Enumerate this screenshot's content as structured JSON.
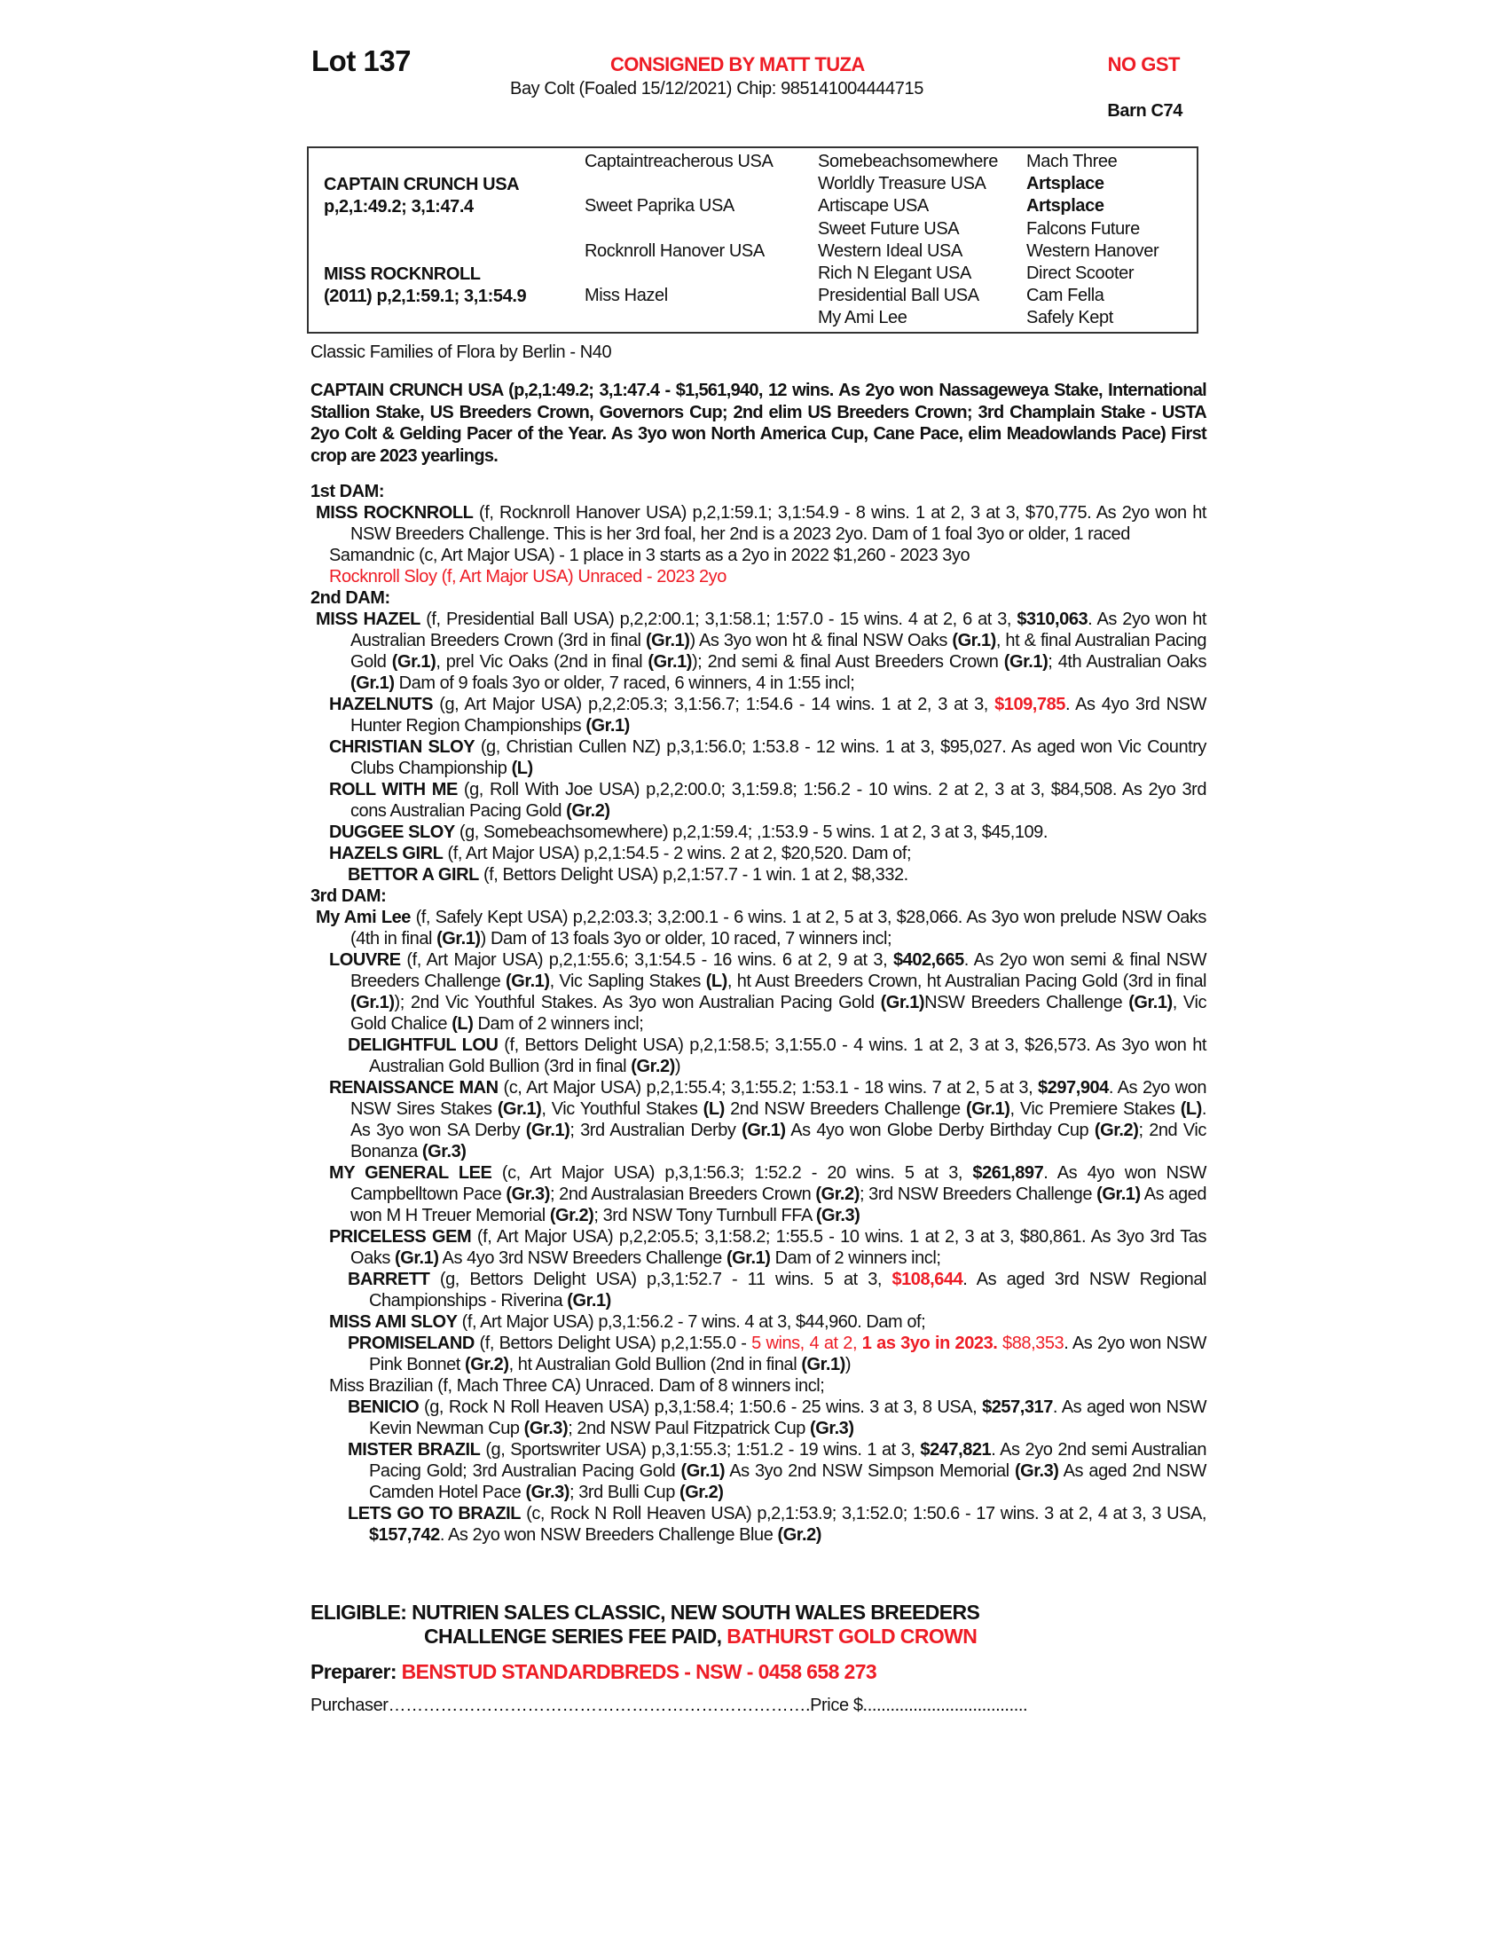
{
  "header": {
    "lot": "Lot 137",
    "consignor": "CONSIGNED BY MATT TUZA",
    "gst": "NO GST",
    "description": "Bay Colt (Foaled 15/12/2021) Chip: 985141004444715",
    "barn": "Barn C74"
  },
  "pedigree": {
    "sire_name": "CAPTAIN CRUNCH USA",
    "sire_record": "p,2,1:49.2; 3,1:47.4",
    "dam_name": "MISS ROCKNROLL",
    "dam_record": "(2011) p,2,1:59.1; 3,1:54.9",
    "col2": [
      "Captaintreacherous USA",
      "Sweet Paprika USA",
      "Rocknroll Hanover USA",
      "Miss Hazel"
    ],
    "col3": [
      "Somebeachsomewhere",
      "Worldly Treasure USA",
      "Artiscape USA",
      "Sweet Future USA",
      "Western Ideal USA",
      "Rich N Elegant USA",
      "Presidential Ball USA",
      "My Ami Lee"
    ],
    "col4": [
      "Mach Three",
      "Artsplace",
      "Artsplace",
      "Falcons Future",
      "Western Hanover",
      "Direct Scooter",
      "Cam Fella",
      "Safely Kept"
    ]
  },
  "family": "Classic Families of Flora by Berlin - N40",
  "sire_summary": "CAPTAIN CRUNCH USA (p,2,1:49.2; 3,1:47.4 - $1,561,940, 12 wins. As 2yo won Nassageweya Stake, International Stallion Stake, US Breeders Crown, Governors Cup; 2nd elim US Breeders Crown; 3rd Champlain Stake - USTA 2yo Colt & Gelding Pacer of the Year. As 3yo won North America Cup, Cane Pace, elim Meadowlands Pace) First crop are 2023 yearlings.",
  "entries": [
    {
      "level": "h",
      "runs": [
        [
          "1st DAM:",
          ""
        ]
      ]
    },
    {
      "level": "l1",
      "runs": [
        [
          "MISS ROCKNROLL",
          "b"
        ],
        [
          " (f, Rocknroll Hanover USA) p,2,1:59.1; 3,1:54.9 - 8 wins. 1 at 2, 3 at 3, $70,775. As 2yo won ht NSW Breeders Challenge. This is her 3rd foal, her 2nd is a 2023 2yo. Dam of 1 foal 3yo or older, 1 raced",
          ""
        ]
      ]
    },
    {
      "level": "l2",
      "runs": [
        [
          "Samandnic (c, Art Major USA) - 1 place in 3 starts as a 2yo in 2022 $1,260 - 2023 3yo",
          ""
        ]
      ]
    },
    {
      "level": "l2",
      "runs": [
        [
          "Rocknroll Sloy (f, Art Major USA) Unraced - 2023 2yo",
          "r"
        ]
      ]
    },
    {
      "level": "h",
      "runs": [
        [
          "2nd DAM:",
          ""
        ]
      ]
    },
    {
      "level": "l1",
      "runs": [
        [
          "MISS HAZEL",
          "b"
        ],
        [
          " (f, Presidential Ball USA) p,2,2:00.1; 3,1:58.1; 1:57.0 - 15 wins. 4 at 2, 6 at 3, ",
          ""
        ],
        [
          "$310,063",
          "b"
        ],
        [
          ". As 2yo won ht Australian Breeders Crown (3rd in final ",
          ""
        ],
        [
          "(Gr.1)",
          "b"
        ],
        [
          ") As 3yo won ht & final NSW Oaks ",
          ""
        ],
        [
          "(Gr.1)",
          "b"
        ],
        [
          ", ht & final Australian Pacing Gold ",
          ""
        ],
        [
          "(Gr.1)",
          "b"
        ],
        [
          ", prel Vic Oaks (2nd in final ",
          ""
        ],
        [
          "(Gr.1)",
          "b"
        ],
        [
          "); 2nd semi & final Aust Breeders Crown ",
          ""
        ],
        [
          "(Gr.1)",
          "b"
        ],
        [
          "; 4th Australian Oaks ",
          ""
        ],
        [
          "(Gr.1)",
          "b"
        ],
        [
          " Dam of 9 foals 3yo or older, 7 raced, 6 winners, 4 in 1:55 incl;",
          ""
        ]
      ]
    },
    {
      "level": "l2",
      "runs": [
        [
          "HAZELNUTS",
          "b"
        ],
        [
          " (g, Art Major USA) p,2,2:05.3; 3,1:56.7; 1:54.6 - 14 wins. 1 at 2, 3 at 3, ",
          ""
        ],
        [
          "$109,785",
          "br"
        ],
        [
          ". As 4yo 3rd NSW Hunter Region Championships ",
          ""
        ],
        [
          "(Gr.1)",
          "b"
        ]
      ]
    },
    {
      "level": "l2",
      "runs": [
        [
          "CHRISTIAN SLOY",
          "b"
        ],
        [
          " (g, Christian Cullen NZ) p,3,1:56.0; 1:53.8 - 12 wins. 1 at 3, $95,027. As aged won Vic Country Clubs Championship ",
          ""
        ],
        [
          "(L)",
          "b"
        ]
      ]
    },
    {
      "level": "l2",
      "runs": [
        [
          "ROLL WITH ME",
          "b"
        ],
        [
          " (g, Roll With Joe USA) p,2,2:00.0; 3,1:59.8; 1:56.2 - 10 wins. 2 at 2, 3 at 3, $84,508. As 2yo 3rd cons Australian Pacing Gold ",
          ""
        ],
        [
          "(Gr.2)",
          "b"
        ]
      ]
    },
    {
      "level": "l2",
      "runs": [
        [
          "DUGGEE SLOY",
          "b"
        ],
        [
          " (g, Somebeachsomewhere) p,2,1:59.4; ,1:53.9 - 5 wins. 1 at 2, 3 at 3, $45,109.",
          ""
        ]
      ]
    },
    {
      "level": "l2",
      "runs": [
        [
          "HAZELS GIRL",
          "b"
        ],
        [
          " (f, Art Major USA) p,2,1:54.5 - 2 wins. 2 at 2, $20,520. Dam of;",
          ""
        ]
      ]
    },
    {
      "level": "l3",
      "runs": [
        [
          "BETTOR A GIRL",
          "b"
        ],
        [
          " (f, Bettors Delight USA) p,2,1:57.7 - 1 win. 1 at 2, $8,332.",
          ""
        ]
      ]
    },
    {
      "level": "h",
      "runs": [
        [
          "3rd DAM:",
          ""
        ]
      ]
    },
    {
      "level": "l1",
      "runs": [
        [
          "My Ami Lee",
          "b"
        ],
        [
          " (f, Safely Kept USA) p,2,2:03.3; 3,2:00.1 - 6 wins. 1 at 2, 5 at 3, $28,066. As 3yo won prelude NSW Oaks (4th in final ",
          ""
        ],
        [
          "(Gr.1)",
          "b"
        ],
        [
          ") Dam of 13 foals 3yo or older, 10 raced, 7 winners incl;",
          ""
        ]
      ]
    },
    {
      "level": "l2",
      "runs": [
        [
          "LOUVRE",
          "b"
        ],
        [
          " (f, Art Major USA) p,2,1:55.6; 3,1:54.5 - 16 wins. 6 at 2, 9 at 3, ",
          ""
        ],
        [
          "$402,665",
          "b"
        ],
        [
          ". As 2yo won semi & final NSW Breeders Challenge ",
          ""
        ],
        [
          "(Gr.1)",
          "b"
        ],
        [
          ", Vic Sapling Stakes ",
          ""
        ],
        [
          "(L)",
          "b"
        ],
        [
          ", ht Aust Breeders Crown, ht Australian Pacing Gold (3rd in final ",
          ""
        ],
        [
          "(Gr.1)",
          "b"
        ],
        [
          "); 2nd Vic Youthful Stakes. As 3yo won Australian Pacing Gold ",
          ""
        ],
        [
          "(Gr.1)",
          "b"
        ],
        [
          "NSW Breeders Challenge ",
          ""
        ],
        [
          "(Gr.1)",
          "b"
        ],
        [
          ", Vic Gold Chalice ",
          ""
        ],
        [
          "(L)",
          "b"
        ],
        [
          " Dam of 2 winners incl;",
          ""
        ]
      ]
    },
    {
      "level": "l3",
      "runs": [
        [
          "DELIGHTFUL LOU",
          "b"
        ],
        [
          " (f, Bettors Delight USA) p,2,1:58.5; 3,1:55.0 - 4 wins. 1 at 2, 3 at 3, $26,573. As 3yo won ht Australian Gold Bullion (3rd in final ",
          ""
        ],
        [
          "(Gr.2)",
          "b"
        ],
        [
          ")",
          ""
        ]
      ]
    },
    {
      "level": "l2",
      "runs": [
        [
          "RENAISSANCE MAN",
          "b"
        ],
        [
          " (c, Art Major USA) p,2,1:55.4; 3,1:55.2; 1:53.1 - 18 wins. 7 at 2, 5 at 3, ",
          ""
        ],
        [
          "$297,904",
          "b"
        ],
        [
          ". As 2yo won NSW Sires Stakes ",
          ""
        ],
        [
          "(Gr.1)",
          "b"
        ],
        [
          ", Vic Youthful Stakes ",
          ""
        ],
        [
          "(L)",
          "b"
        ],
        [
          " 2nd NSW Breeders Challenge ",
          ""
        ],
        [
          "(Gr.1)",
          "b"
        ],
        [
          ", Vic Premiere Stakes ",
          ""
        ],
        [
          "(L)",
          "b"
        ],
        [
          ". As 3yo won SA Derby ",
          ""
        ],
        [
          "(Gr.1)",
          "b"
        ],
        [
          "; 3rd Australian Derby ",
          ""
        ],
        [
          "(Gr.1)",
          "b"
        ],
        [
          " As 4yo won Globe Derby Birthday Cup ",
          ""
        ],
        [
          "(Gr.2)",
          "b"
        ],
        [
          "; 2nd Vic Bonanza ",
          ""
        ],
        [
          "(Gr.3)",
          "b"
        ]
      ]
    },
    {
      "level": "l2",
      "runs": [
        [
          "MY GENERAL LEE",
          "b"
        ],
        [
          " (c, Art Major USA) p,3,1:56.3; 1:52.2 - 20 wins. 5 at 3, ",
          ""
        ],
        [
          "$261,897",
          "b"
        ],
        [
          ". As 4yo won NSW Campbelltown Pace ",
          ""
        ],
        [
          "(Gr.3)",
          "b"
        ],
        [
          "; 2nd Australasian Breeders Crown ",
          ""
        ],
        [
          "(Gr.2)",
          "b"
        ],
        [
          "; 3rd NSW Breeders Challenge ",
          ""
        ],
        [
          "(Gr.1)",
          "b"
        ],
        [
          " As aged won M H Treuer Memorial ",
          ""
        ],
        [
          "(Gr.2)",
          "b"
        ],
        [
          "; 3rd NSW Tony Turnbull FFA ",
          ""
        ],
        [
          "(Gr.3)",
          "b"
        ]
      ]
    },
    {
      "level": "l2",
      "runs": [
        [
          "PRICELESS GEM",
          "b"
        ],
        [
          " (f, Art Major USA) p,2,2:05.5; 3,1:58.2; 1:55.5 - 10 wins. 1 at 2, 3 at 3, $80,861. As 3yo 3rd Tas Oaks ",
          ""
        ],
        [
          "(Gr.1)",
          "b"
        ],
        [
          " As 4yo 3rd NSW Breeders Challenge ",
          ""
        ],
        [
          "(Gr.1)",
          "b"
        ],
        [
          " Dam of 2 winners incl;",
          ""
        ]
      ]
    },
    {
      "level": "l3",
      "runs": [
        [
          "BARRETT",
          "b"
        ],
        [
          " (g, Bettors Delight USA) p,3,1:52.7 - 11 wins. 5 at 3, ",
          ""
        ],
        [
          "$108,644",
          "br"
        ],
        [
          ". As aged 3rd NSW Regional Championships - Riverina ",
          ""
        ],
        [
          "(Gr.1)",
          "b"
        ]
      ]
    },
    {
      "level": "l2",
      "runs": [
        [
          "MISS AMI SLOY",
          "b"
        ],
        [
          " (f, Art Major USA) p,3,1:56.2 - 7 wins. 4 at 3, $44,960. Dam of;",
          ""
        ]
      ]
    },
    {
      "level": "l3",
      "runs": [
        [
          "PROMISELAND",
          "b"
        ],
        [
          " (f, Bettors Delight USA) p,2,1:55.0 - ",
          ""
        ],
        [
          "5 wins, 4 at 2, ",
          "r"
        ],
        [
          "1 as 3yo in 2023.",
          "br"
        ],
        [
          " $88,353",
          "r"
        ],
        [
          ". As 2yo won NSW Pink Bonnet ",
          ""
        ],
        [
          "(Gr.2)",
          "b"
        ],
        [
          ", ht Australian Gold Bullion (2nd in final ",
          ""
        ],
        [
          "(Gr.1)",
          "b"
        ],
        [
          ")",
          ""
        ]
      ]
    },
    {
      "level": "l2",
      "runs": [
        [
          "Miss Brazilian (f, Mach Three CA) Unraced. Dam of 8 winners incl;",
          ""
        ]
      ]
    },
    {
      "level": "l3",
      "runs": [
        [
          "BENICIO",
          "b"
        ],
        [
          " (g, Rock N Roll Heaven USA) p,3,1:58.4; 1:50.6 - 25 wins. 3 at 3, 8 USA, ",
          ""
        ],
        [
          "$257,317",
          "b"
        ],
        [
          ". As aged won NSW Kevin Newman Cup ",
          ""
        ],
        [
          "(Gr.3)",
          "b"
        ],
        [
          "; 2nd NSW Paul Fitzpatrick Cup ",
          ""
        ],
        [
          "(Gr.3)",
          "b"
        ]
      ]
    },
    {
      "level": "l3",
      "runs": [
        [
          "MISTER BRAZIL",
          "b"
        ],
        [
          " (g, Sportswriter USA) p,3,1:55.3; 1:51.2 - 19 wins. 1 at 3, ",
          ""
        ],
        [
          "$247,821",
          "b"
        ],
        [
          ". As 2yo 2nd semi Australian Pacing Gold; 3rd Australian Pacing Gold ",
          ""
        ],
        [
          "(Gr.1)",
          "b"
        ],
        [
          " As 3yo 2nd NSW Simpson Memorial ",
          ""
        ],
        [
          "(Gr.3)",
          "b"
        ],
        [
          " As aged 2nd NSW Camden Hotel Pace ",
          ""
        ],
        [
          "(Gr.3)",
          "b"
        ],
        [
          "; 3rd Bulli Cup ",
          ""
        ],
        [
          "(Gr.2)",
          "b"
        ]
      ]
    },
    {
      "level": "l3",
      "runs": [
        [
          "LETS GO TO BRAZIL",
          "b"
        ],
        [
          " (c, Rock N Roll Heaven USA) p,2,1:53.9; 3,1:52.0; 1:50.6 - 17 wins. 3 at 2, 4 at 3, 3 USA, ",
          ""
        ],
        [
          "$157,742",
          "b"
        ],
        [
          ". As 2yo won NSW Breeders Challenge Blue ",
          ""
        ],
        [
          "(Gr.2)",
          "b"
        ]
      ]
    }
  ],
  "eligible": {
    "line1": "ELIGIBLE: NUTRIEN SALES CLASSIC, NEW SOUTH WALES BREEDERS",
    "line2": "CHALLENGE SERIES FEE PAID, ",
    "line2_red": "BATHURST GOLD CROWN"
  },
  "preparer": {
    "label": "Preparer: ",
    "value": "BENSTUD STANDARDBREDS - NSW - 0458 658 273"
  },
  "purchaser": {
    "label": "Purchaser……………………………………………………………….Price $...................................."
  },
  "colors": {
    "accent_red": "#ee1c25",
    "text": "#111111"
  }
}
